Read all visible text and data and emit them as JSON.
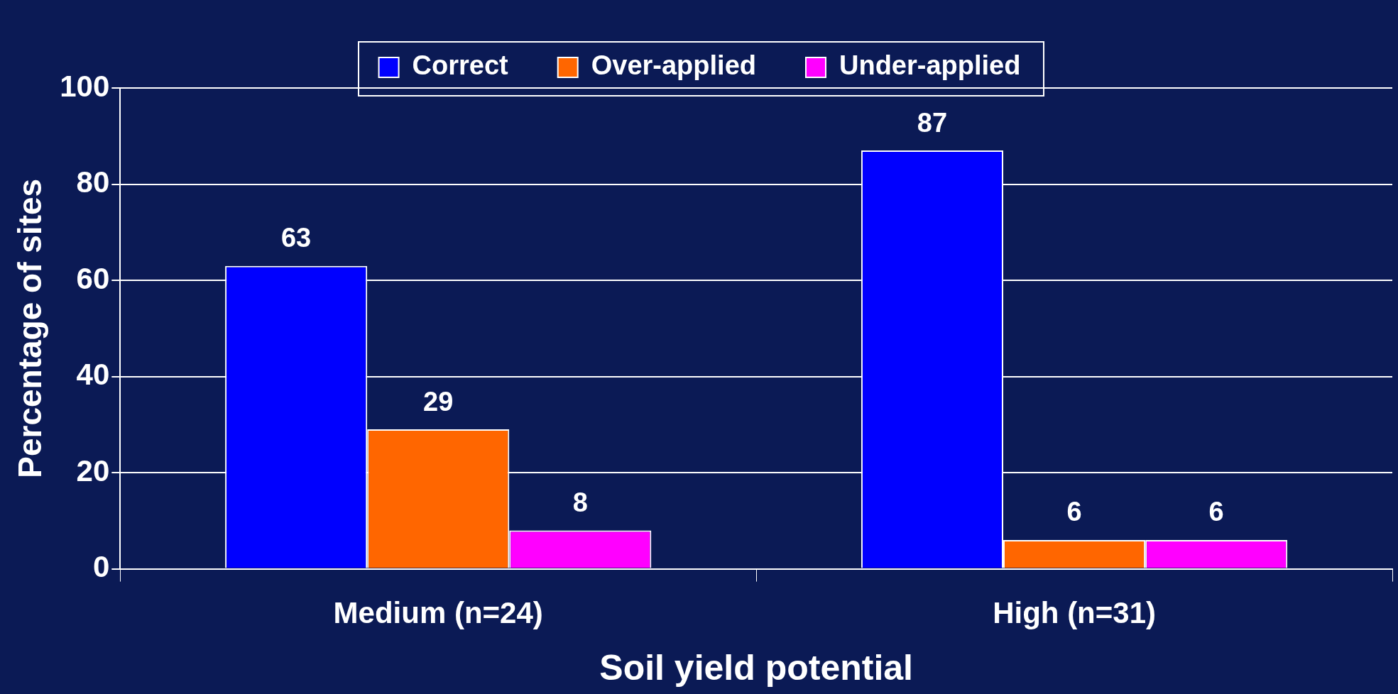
{
  "chart_data": {
    "type": "bar",
    "xlabel": "Soil yield potential",
    "ylabel": "Percentage of sites",
    "categories": [
      "Medium (n=24)",
      "High (n=31)"
    ],
    "series": [
      {
        "name": "Correct",
        "color": "#0000ff",
        "values": [
          63,
          87
        ]
      },
      {
        "name": "Over-applied",
        "color": "#ff6600",
        "values": [
          29,
          6
        ]
      },
      {
        "name": "Under-applied",
        "color": "#ff00ff",
        "values": [
          8,
          6
        ]
      }
    ],
    "ylim": [
      0,
      100
    ],
    "yticks": [
      0,
      20,
      40,
      60,
      80,
      100
    ],
    "grid": "y",
    "legend": "top",
    "data_labels": true
  }
}
